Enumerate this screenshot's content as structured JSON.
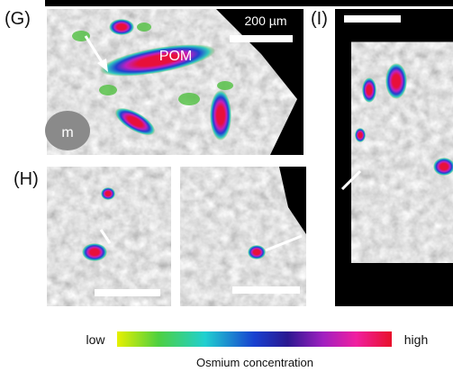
{
  "panels": {
    "g": {
      "label": "(G)",
      "scale_bar": "200 µm",
      "annotations": [
        "POM",
        "m"
      ]
    },
    "h": {
      "label": "(H)"
    },
    "i": {
      "label": "(I)"
    }
  },
  "colorbar": {
    "low": "low",
    "high": "high",
    "title": "Osmium concentration"
  }
}
